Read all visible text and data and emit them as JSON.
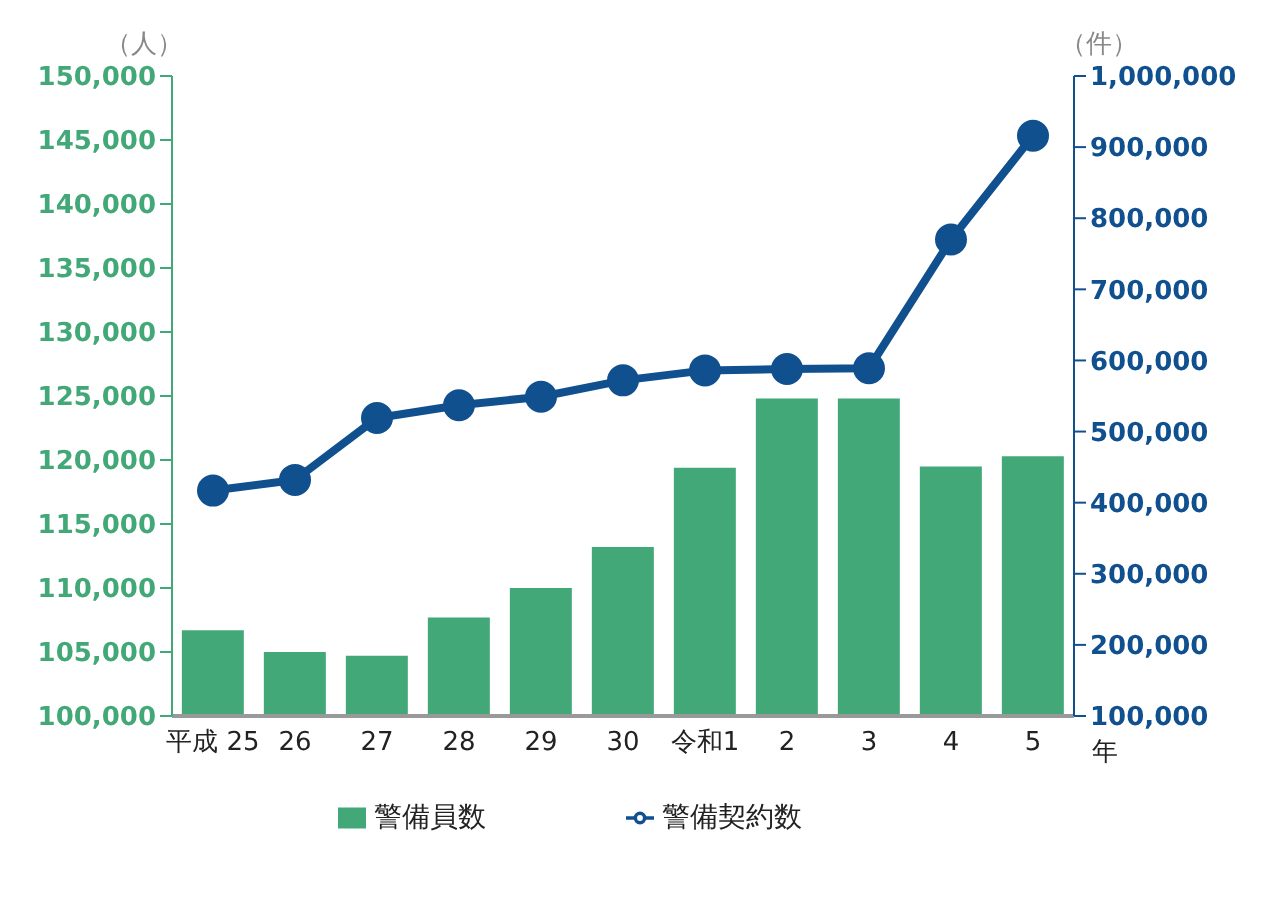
{
  "chart_data": {
    "type": "bar",
    "ylabel": "（人）",
    "y2label": "（件）",
    "xlabel": "年",
    "categories": [
      "平成 25",
      "26",
      "27",
      "28",
      "29",
      "30",
      "令和1",
      "2",
      "3",
      "4",
      "5"
    ],
    "series": [
      {
        "name": "警備員数",
        "color": "#43a878",
        "values": [
          106700,
          105000,
          104700,
          107700,
          110000,
          113200,
          119400,
          124800,
          124800,
          119500,
          120300
        ]
      },
      {
        "name": "警備契約数",
        "type": "line",
        "axis": "y2",
        "color": "#11508f",
        "values": [
          417000,
          432000,
          519000,
          537000,
          549000,
          572000,
          586000,
          588000,
          589000,
          770000,
          916000
        ]
      }
    ],
    "ylim": [
      100000,
      150000
    ],
    "yticks": [
      {
        "value": 100000,
        "label": "100,000"
      },
      {
        "value": 105000,
        "label": "105,000"
      },
      {
        "value": 110000,
        "label": "110,000"
      },
      {
        "value": 115000,
        "label": "115,000"
      },
      {
        "value": 120000,
        "label": "120,000"
      },
      {
        "value": 125000,
        "label": "125,000"
      },
      {
        "value": 130000,
        "label": "130,000"
      },
      {
        "value": 135000,
        "label": "135,000"
      },
      {
        "value": 140000,
        "label": "140,000"
      },
      {
        "value": 145000,
        "label": "145,000"
      },
      {
        "value": 150000,
        "label": "150,000"
      }
    ],
    "y2lim": [
      100000,
      1000000
    ],
    "y2ticks": [
      {
        "value": 100000,
        "label": "100,000"
      },
      {
        "value": 200000,
        "label": "200,000"
      },
      {
        "value": 300000,
        "label": "300,000"
      },
      {
        "value": 400000,
        "label": "400,000"
      },
      {
        "value": 500000,
        "label": "500,000"
      },
      {
        "value": 600000,
        "label": "600,000"
      },
      {
        "value": 700000,
        "label": "700,000"
      },
      {
        "value": 800000,
        "label": "800,000"
      },
      {
        "value": 900000,
        "label": "900,000"
      },
      {
        "value": 1000000,
        "label": "1,000,000"
      }
    ],
    "legend": "bottom",
    "marker": "circle",
    "grid": false
  }
}
